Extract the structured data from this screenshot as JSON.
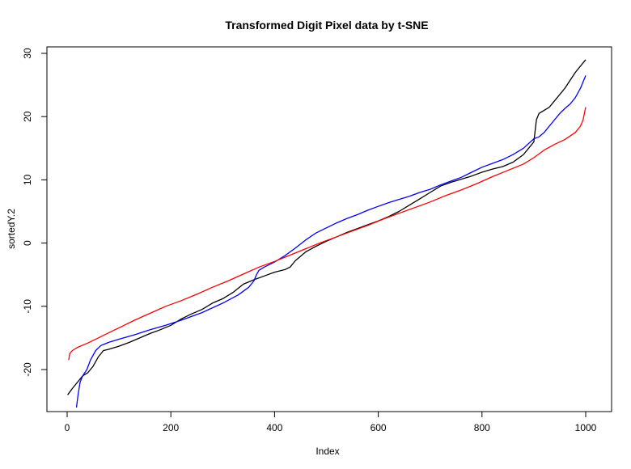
{
  "chart_data": {
    "type": "line",
    "title": "Transformed Digit Pixel data by t-SNE",
    "xlabel": "Index",
    "ylabel": "sortedY.2",
    "xlim": [
      0,
      1000
    ],
    "ylim": [
      -26,
      30
    ],
    "x_ticks": [
      "0",
      "200",
      "400",
      "600",
      "800",
      "1000"
    ],
    "y_ticks": [
      "-20",
      "-10",
      "0",
      "10",
      "20",
      "30"
    ],
    "grid": false,
    "legend": "none",
    "series": [
      {
        "color": "#000000",
        "x": [
          1,
          10,
          20,
          30,
          40,
          50,
          60,
          70,
          80,
          100,
          120,
          140,
          160,
          180,
          200,
          220,
          240,
          260,
          280,
          300,
          320,
          340,
          360,
          380,
          400,
          420,
          430,
          440,
          460,
          480,
          500,
          520,
          540,
          560,
          580,
          600,
          620,
          640,
          660,
          680,
          700,
          720,
          740,
          760,
          780,
          800,
          820,
          840,
          860,
          880,
          890,
          900,
          905,
          910,
          920,
          930,
          940,
          960,
          980,
          1000
        ],
        "y": [
          -24,
          -23,
          -22,
          -21,
          -20.5,
          -19.5,
          -18,
          -17,
          -16.8,
          -16.3,
          -15.7,
          -15,
          -14.3,
          -13.7,
          -13,
          -12,
          -11.2,
          -10.5,
          -9.5,
          -8.8,
          -7.8,
          -6.5,
          -5.8,
          -5.2,
          -4.6,
          -4.2,
          -3.8,
          -2.8,
          -1.4,
          -0.5,
          0.3,
          1,
          1.7,
          2.3,
          2.9,
          3.5,
          4.2,
          5,
          6,
          7,
          8,
          9,
          9.6,
          10.1,
          10.6,
          11.2,
          11.7,
          12.1,
          12.8,
          14,
          15,
          16,
          19.5,
          20.5,
          21,
          21.5,
          22.5,
          24.5,
          27,
          29
        ]
      },
      {
        "color": "#0000ff",
        "x": [
          18,
          21,
          25,
          30,
          38,
          45,
          55,
          65,
          80,
          100,
          130,
          160,
          190,
          220,
          260,
          300,
          330,
          350,
          360,
          365,
          370,
          380,
          400,
          420,
          440,
          460,
          480,
          500,
          520,
          540,
          560,
          580,
          600,
          620,
          640,
          660,
          680,
          700,
          720,
          740,
          760,
          780,
          800,
          820,
          840,
          860,
          880,
          900,
          910,
          920,
          930,
          940,
          950,
          960,
          970,
          980,
          990,
          1000
        ],
        "y": [
          -26,
          -24,
          -22,
          -21,
          -20,
          -18.5,
          -17,
          -16.2,
          -15.7,
          -15.2,
          -14.5,
          -13.7,
          -13,
          -12.2,
          -11,
          -9.5,
          -8.2,
          -7,
          -6,
          -5,
          -4.3,
          -3.8,
          -3,
          -2,
          -0.8,
          0.5,
          1.6,
          2.4,
          3.2,
          3.9,
          4.5,
          5.2,
          5.8,
          6.4,
          6.9,
          7.4,
          8,
          8.5,
          9.2,
          9.8,
          10.4,
          11.2,
          12,
          12.6,
          13.2,
          14,
          15,
          16.5,
          16.8,
          17.5,
          18.5,
          19.5,
          20.5,
          21.3,
          22,
          23,
          24.5,
          26.5
        ]
      },
      {
        "color": "#ff0000",
        "x": [
          3,
          5,
          10,
          20,
          40,
          60,
          80,
          100,
          130,
          160,
          190,
          220,
          250,
          280,
          310,
          340,
          370,
          400,
          430,
          460,
          490,
          520,
          550,
          580,
          610,
          640,
          670,
          700,
          730,
          760,
          790,
          820,
          850,
          880,
          900,
          920,
          940,
          960,
          980,
          990,
          995,
          1000
        ],
        "y": [
          -18.5,
          -17.5,
          -17,
          -16.5,
          -15.8,
          -15,
          -14.2,
          -13.4,
          -12.2,
          -11.1,
          -10,
          -9.1,
          -8.1,
          -7,
          -6,
          -4.9,
          -3.8,
          -2.9,
          -1.9,
          -0.9,
          0.1,
          1,
          1.9,
          2.8,
          3.8,
          4.7,
          5.6,
          6.5,
          7.5,
          8.4,
          9.4,
          10.5,
          11.5,
          12.5,
          13.5,
          14.7,
          15.6,
          16.4,
          17.5,
          18.5,
          19.5,
          21.5
        ]
      }
    ]
  }
}
